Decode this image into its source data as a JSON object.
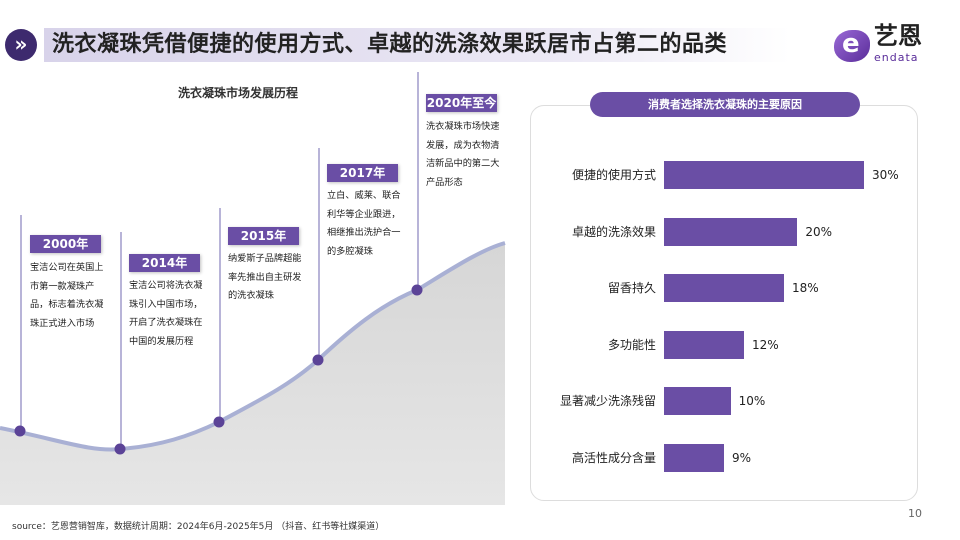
{
  "header": {
    "icon": "double-chevron-right-icon",
    "title": "洗衣凝珠凭借便捷的使用方式、卓越的洗涤效果跃居市占第二的品类"
  },
  "logo": {
    "cn": "艺恩",
    "en": "endata"
  },
  "timeline": {
    "title": "洗衣凝珠市场发展历程",
    "events": [
      {
        "year": "2000年",
        "text": "宝洁公司在英国上市第一款凝珠产品，标志着洗衣凝珠正式进入市场"
      },
      {
        "year": "2014年",
        "text": "宝洁公司将洗衣凝珠引入中国市场，开启了洗衣凝珠在中国的发展历程"
      },
      {
        "year": "2015年",
        "text": "纳爱斯子品牌超能率先推出自主研发的洗衣凝珠"
      },
      {
        "year": "2017年",
        "text": "立白、威莱、联合利华等企业跟进，相继推出洗护合一的多腔凝珠"
      },
      {
        "year": "2020年至今",
        "text": "洗衣凝珠市场快速发展，成为衣物清洁新品中的第二大产品形态"
      }
    ]
  },
  "chart_data": {
    "type": "bar",
    "title": "消费者选择洗衣凝珠的主要原因",
    "categories": [
      "便捷的使用方式",
      "卓越的洗涤效果",
      "留香持久",
      "多功能性",
      "显著减少洗涤残留",
      "高活性成分含量"
    ],
    "values": [
      30,
      20,
      18,
      12,
      10,
      9
    ],
    "value_labels": [
      "30%",
      "20%",
      "18%",
      "12%",
      "10%",
      "9%"
    ],
    "orientation": "horizontal",
    "color": "#6a4ea5"
  },
  "footer": {
    "source": "source：艺恩营销智库，数据统计周期：2024年6月-2025年5月 （抖音、红书等社媒渠道）",
    "page": "10"
  }
}
